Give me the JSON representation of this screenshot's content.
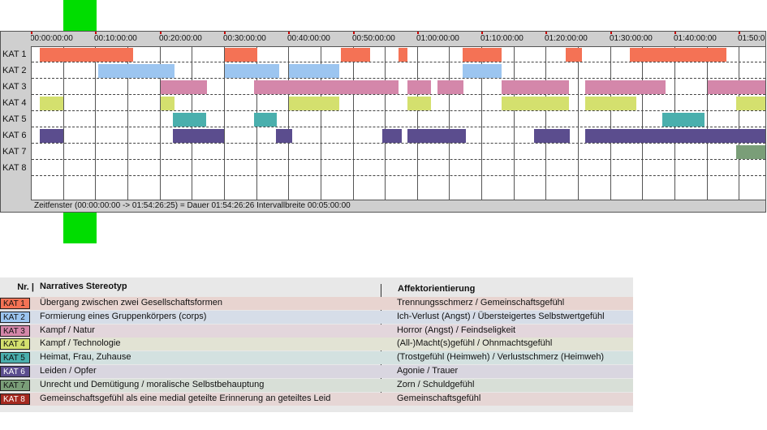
{
  "chart_data": {
    "type": "timeline",
    "time_axis": {
      "start": "00:00:00:00",
      "end": "01:54:26:25",
      "tick_step_minutes": 10,
      "tick_labels": [
        "00:00:00:00",
        "00:10:00:00",
        "00:20:00:00",
        "00:30:00:00",
        "00:40:00:00",
        "00:50:00:00",
        "01:00:00:00",
        "01:10:00:00",
        "01:20:00:00",
        "01:30:00:00",
        "01:40:00:00",
        "01:50:0"
      ],
      "gridline_minutes": 5
    },
    "categories": [
      "KAT 1",
      "KAT 2",
      "KAT 3",
      "KAT 4",
      "KAT 5",
      "KAT 6",
      "KAT 7",
      "KAT 8"
    ],
    "colors": {
      "KAT 1": "#f47255",
      "KAT 2": "#9cc5f0",
      "KAT 3": "#d487aa",
      "KAT 4": "#d4e06e",
      "KAT 5": "#4aafad",
      "KAT 6": "#5b4d8e",
      "KAT 7": "#7a9e78",
      "KAT 8": "#a52a20"
    },
    "segments_minutes": {
      "KAT 1": [
        [
          1.3,
          15.8
        ],
        [
          30.0,
          35.0
        ],
        [
          48.0,
          52.5
        ],
        [
          57.0,
          58.4
        ],
        [
          67.0,
          73.0
        ],
        [
          83.0,
          85.5
        ],
        [
          93.0,
          108.0
        ]
      ],
      "KAT 2": [
        [
          10.3,
          22.2
        ],
        [
          30.0,
          38.5
        ],
        [
          40.0,
          47.8
        ],
        [
          67.0,
          73.0
        ]
      ],
      "KAT 3": [
        [
          20.0,
          27.2
        ],
        [
          34.5,
          57.0
        ],
        [
          58.4,
          62.0
        ],
        [
          63.0,
          67.0
        ],
        [
          73.0,
          83.5
        ],
        [
          86.0,
          98.5
        ],
        [
          105.0,
          115.0
        ]
      ],
      "KAT 4": [
        [
          1.3,
          5.0
        ],
        [
          20.0,
          22.2
        ],
        [
          40.0,
          47.8
        ],
        [
          58.4,
          62.0
        ],
        [
          73.0,
          83.5
        ],
        [
          86.0,
          94.0
        ],
        [
          109.5,
          115.0
        ]
      ],
      "KAT 5": [
        [
          22.0,
          27.2
        ],
        [
          34.5,
          38.0
        ],
        [
          98.0,
          104.5
        ]
      ],
      "KAT 6": [
        [
          1.3,
          5.0
        ],
        [
          22.0,
          30.0
        ],
        [
          38.0,
          40.5
        ],
        [
          54.5,
          57.5
        ],
        [
          58.4,
          67.5
        ],
        [
          78.0,
          83.5
        ],
        [
          86.0,
          115.0
        ]
      ],
      "KAT 7": [
        [
          109.5,
          115.0
        ]
      ],
      "KAT 8": []
    }
  },
  "timeline": {
    "status_text": "Zeitfenster (00:00:00:00 -> 01:54:26:25) = Dauer 01:54:26:26    Intervallbreite 00:05:00:00"
  },
  "legend": {
    "header_nr": "Nr. |",
    "header_story": "Narratives Stereotyp",
    "header_affect": "Affektorientierung",
    "rows": [
      {
        "label": "KAT 1",
        "story": "Übergang zwischen zwei Gesellschaftsformen",
        "affect": "Trennungsschmerz / Gemeinschaftsgefühl",
        "row_color": "#e8d4d0",
        "text_color": "#111111"
      },
      {
        "label": "KAT 2",
        "story": "Formierung eines Gruppenkörpers (corps)",
        "affect": "Ich-Verlust (Angst) / Übersteigertes Selbstwertgefühl",
        "row_color": "#d6dde8",
        "text_color": "#111111"
      },
      {
        "label": "KAT 3",
        "story": "Kampf / Natur",
        "affect": "Horror (Angst) / Feindseligkeit",
        "row_color": "#e3d6dc",
        "text_color": "#111111"
      },
      {
        "label": "KAT 4",
        "story": "Kampf / Technologie",
        "affect": "(All-)Macht(s)gefühl / Ohnmachtsgefühl",
        "row_color": "#e2e3d4",
        "text_color": "#111111"
      },
      {
        "label": "KAT 5",
        "story": "Heimat, Frau, Zuhause",
        "affect": "(Trostgefühl (Heimweh) / Verlustschmerz (Heimweh)",
        "row_color": "#d3e1e0",
        "text_color": "#111111"
      },
      {
        "label": "KAT 6",
        "story": "Leiden / Opfer",
        "affect": "Agonie / Trauer",
        "row_color": "#d9d6e0",
        "text_color": "#ffffff"
      },
      {
        "label": "KAT 7",
        "story": "Unrecht und Demütigung / moralische Selbstbehauptung",
        "affect": "Zorn / Schuldgefühl",
        "row_color": "#d8dfd7",
        "text_color": "#111111"
      },
      {
        "label": "KAT 8",
        "story": "Gemeinschaftsgefühl als eine medial geteilte Erinnerung an geteiltes Leid",
        "affect": "Gemeinschaftsgefühl",
        "row_color": "#e6d6d5",
        "text_color": "#ffffff"
      }
    ]
  }
}
